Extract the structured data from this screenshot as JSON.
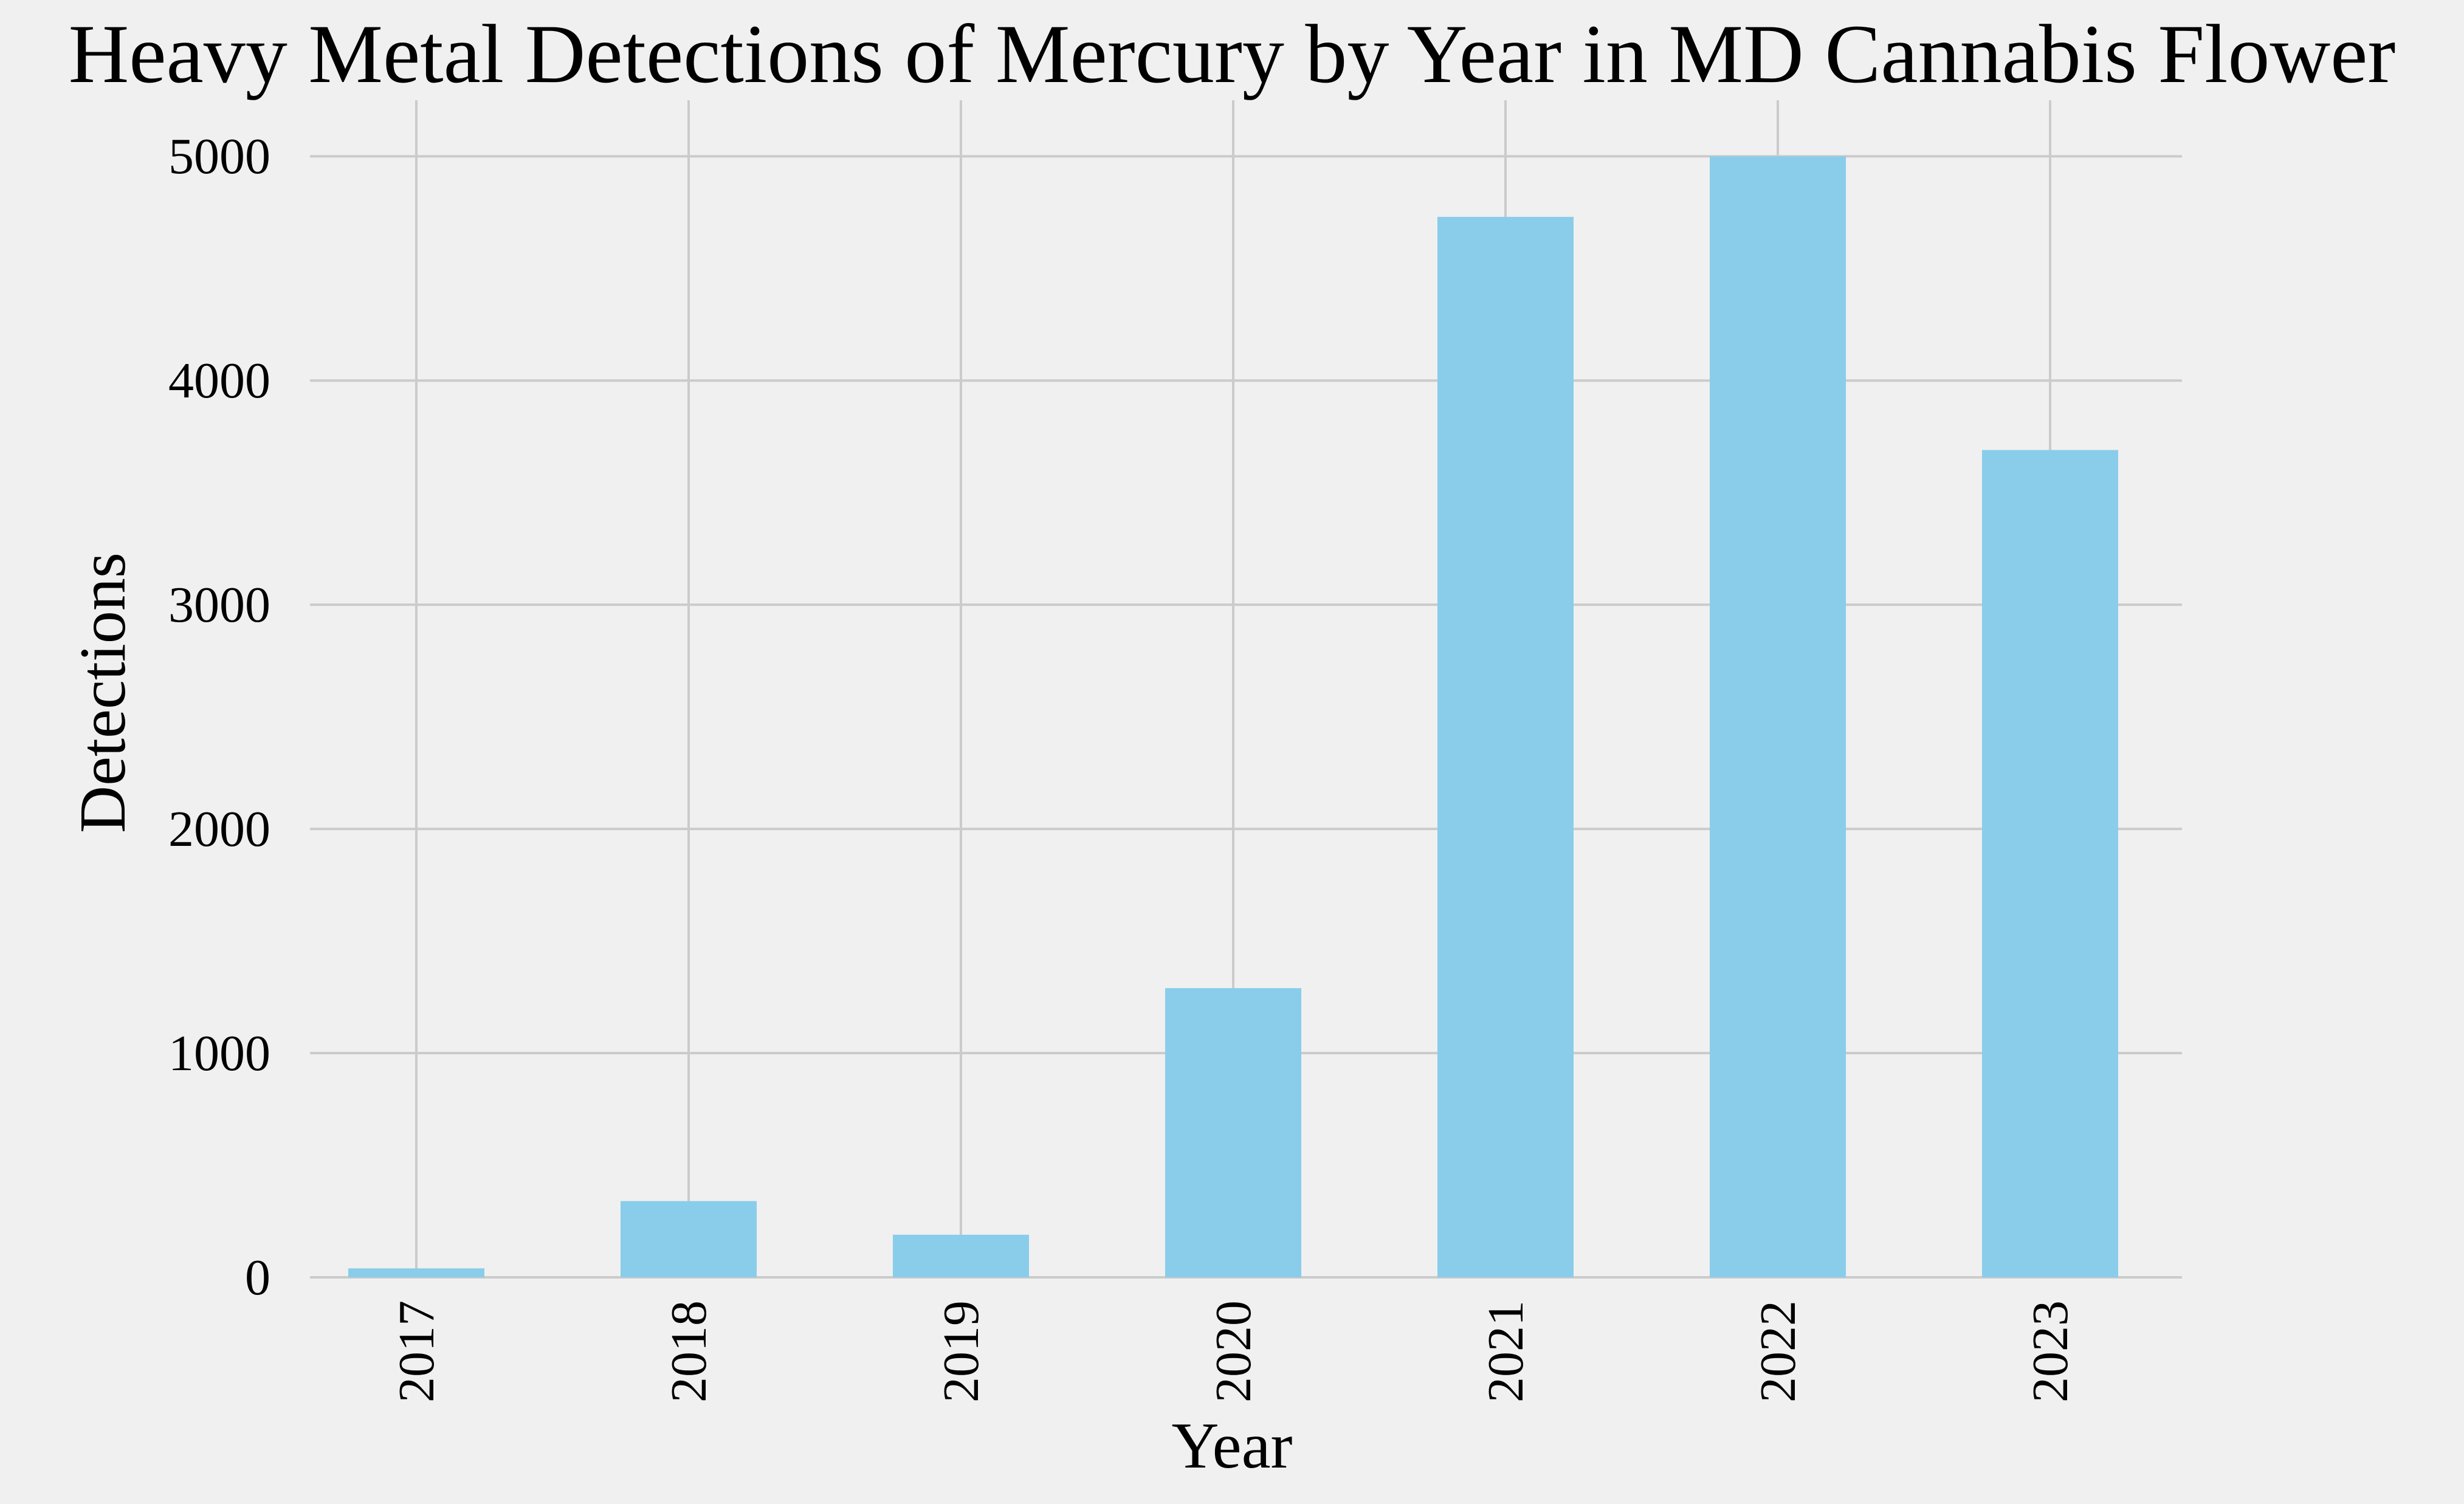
{
  "chart_data": {
    "type": "bar",
    "title": "Heavy Metal Detections of Mercury by Year in MD Cannabis Flower",
    "xlabel": "Year",
    "ylabel": "Detections",
    "categories": [
      "2017",
      "2018",
      "2019",
      "2020",
      "2021",
      "2022",
      "2023"
    ],
    "values": [
      40,
      340,
      190,
      1290,
      4730,
      5000,
      3690
    ],
    "ylim": [
      0,
      5250
    ],
    "yticks": [
      0,
      1000,
      2000,
      3000,
      4000,
      5000
    ],
    "grid": true,
    "bar_color": "#89cdea",
    "background": "#f0f0f0",
    "grid_color": "#cbcbcb"
  }
}
